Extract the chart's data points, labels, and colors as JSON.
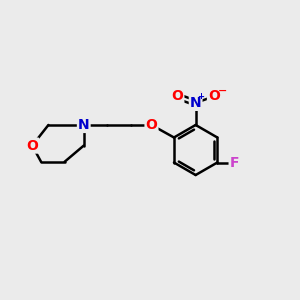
{
  "bg_color": "#ebebeb",
  "bond_color": "#000000",
  "bond_width": 1.8,
  "atom_colors": {
    "O": "#ff0000",
    "N_morpholine": "#0000cc",
    "N_nitro": "#0000cc",
    "F": "#cc44cc",
    "O_nitro": "#ff0000",
    "C": "#000000"
  },
  "font_size_atoms": 10,
  "font_size_charge": 7
}
